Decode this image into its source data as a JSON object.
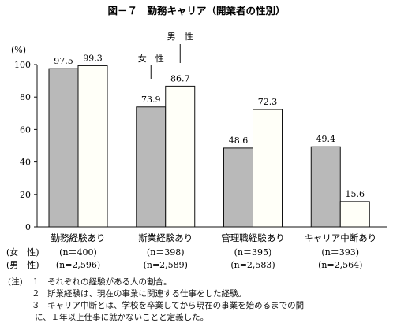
{
  "chart_data": {
    "type": "bar",
    "title": "図－７　勤務キャリア（開業者の性別）",
    "ylabel": "(%)",
    "ylim": [
      0,
      100
    ],
    "yticks": [
      0,
      20,
      40,
      60,
      80,
      100
    ],
    "grid": false,
    "categories": [
      "勤務経験あり",
      "斯業経験あり",
      "管理職経験あり",
      "キャリア中断あり"
    ],
    "series": [
      {
        "name": "女　性",
        "values": [
          97.5,
          73.9,
          48.6,
          49.4
        ],
        "color": "#b9b9b9"
      },
      {
        "name": "男　性",
        "values": [
          99.3,
          86.7,
          72.3,
          15.6
        ],
        "color": "#fffff8"
      }
    ],
    "value_labels": {
      "female": [
        "97.5",
        "73.9",
        "48.6",
        "49.4"
      ],
      "male": [
        "99.3",
        "86.7",
        "72.3",
        "15.6"
      ]
    },
    "legend": {
      "female": "女　性",
      "male": "男　性",
      "placement": "callout-second-group"
    },
    "sample_sizes": {
      "female_label": "(女　性)",
      "male_label": "(男　性)",
      "female": [
        "(n＝400)",
        "(n＝398)",
        "(n＝395)",
        "(n＝393)"
      ],
      "male": [
        "(n=2,596)",
        "(n=2,589)",
        "(n=2,583)",
        "(n=2,564)"
      ]
    }
  },
  "notes": {
    "prefix": "(注)",
    "items": [
      {
        "num": "１",
        "text": "それぞれの経験がある人の割合。"
      },
      {
        "num": "２",
        "text": "斯業経験は、現在の事業に関連する仕事をした経験。"
      },
      {
        "num": "３",
        "text": "キャリア中断とは、学校を卒業してから現在の事業を始めるまでの間"
      }
    ],
    "continuation": "に、１年以上仕事に就かないことと定義した。"
  }
}
